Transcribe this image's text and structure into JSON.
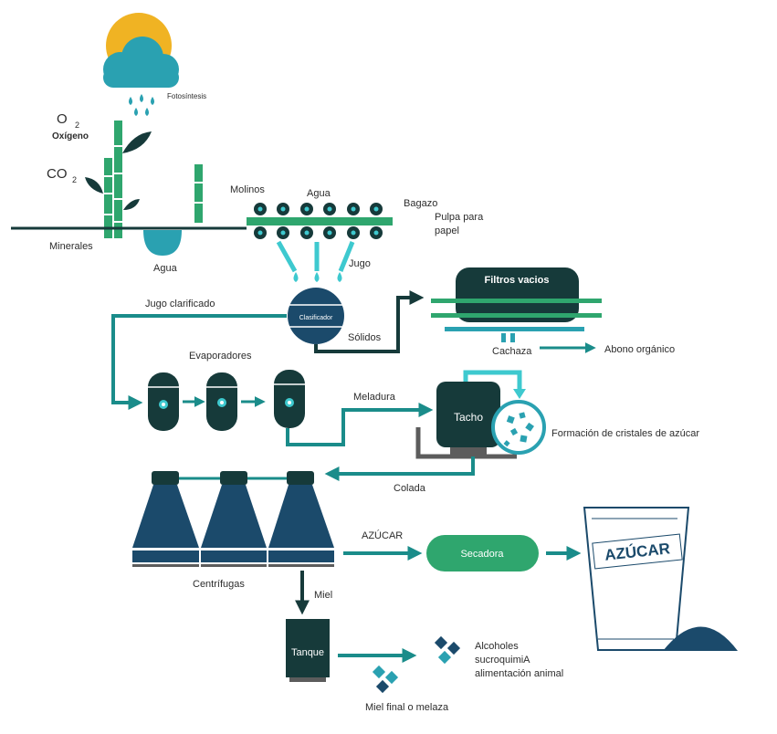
{
  "labels": {
    "fotosintesis": "Fotosíntesis",
    "o": "O",
    "o_sub": "2",
    "oxigeno": "Oxígeno",
    "co": "CO",
    "co_sub": "2",
    "minerales": "Minerales",
    "agua_suelo": "Agua",
    "molinos": "Molinos",
    "agua_molinos": "Agua",
    "bagazo": "Bagazo",
    "pulpa_1": "Pulpa para",
    "pulpa_2": "papel",
    "jugo": "Jugo",
    "jugo_clarificado": "Jugo clarificado",
    "clasificador": "Clasificador",
    "solidos": "Sólidos",
    "filtros_vacios": "Filtros vacios",
    "cachaza": "Cachaza",
    "abono_organico": "Abono orgánico",
    "evaporadores": "Evaporadores",
    "meladura": "Meladura",
    "tacho": "Tacho",
    "formacion_cristales": "Formación de cristales de azúcar",
    "colada": "Colada",
    "azucar_flujo": "AZÚCAR",
    "secadora": "Secadora",
    "bolsa_azucar": "AZÚCAR",
    "centrifugas": "Centrífugas",
    "miel": "Miel",
    "tanque": "Tanque",
    "alcoholes": "Alcoholes",
    "sucroquimia": "sucroquimiA",
    "alimentacion_animal": "alimentación animal",
    "miel_final": "Miel final o melaza"
  },
  "colors": {
    "dark": "#163a3a",
    "navy": "#1b4a6b",
    "teal": "#1a8c8a",
    "green": "#2fa66e",
    "cyan": "#3ec9cf",
    "sun": "#f0b323",
    "cloud": "#2aa1b1",
    "grey": "#5c5c5c"
  }
}
